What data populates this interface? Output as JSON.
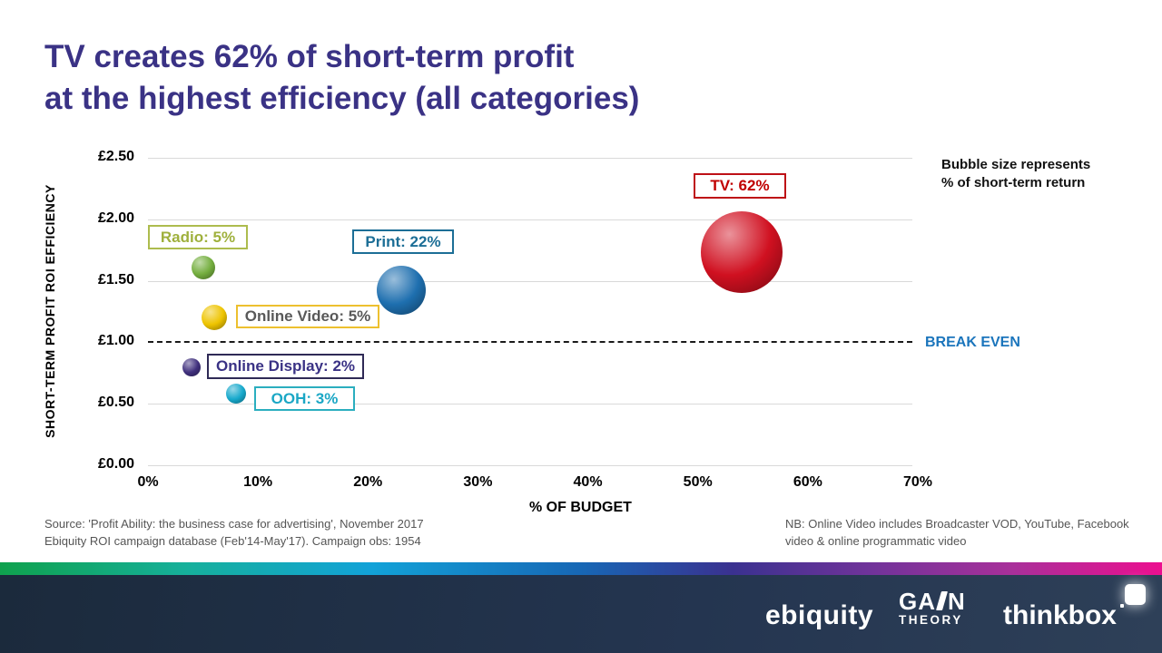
{
  "title": {
    "line1": "TV creates 62% of short-term profit",
    "line2": "at the highest efficiency (all categories)",
    "color": "#3a3285"
  },
  "chart_data": {
    "type": "scatter",
    "title": "",
    "xlabel": "% OF BUDGET",
    "ylabel": "SHORT-TERM PROFIT ROI EFFICIENCY",
    "xlim": [
      0,
      70
    ],
    "ylim": [
      0,
      2.5
    ],
    "x_ticks": [
      "0%",
      "10%",
      "20%",
      "30%",
      "40%",
      "50%",
      "60%",
      "70%"
    ],
    "y_ticks": [
      "£0.00",
      "£0.50",
      "£1.00",
      "£1.50",
      "£2.00",
      "£2.50"
    ],
    "grid": "horizontal-only",
    "break_even": {
      "value": 1.0,
      "label": "BREAK EVEN",
      "color": "#1b75bc"
    },
    "size_note": {
      "line1": "Bubble size represents",
      "line2": "% of short-term return"
    },
    "points": [
      {
        "id": "tv",
        "category": "TV",
        "label": "TV: 62%",
        "budget_pct": 54,
        "roi_efficiency": 1.73,
        "short_term_return_pct": 62,
        "bubble_color": "#d01020",
        "label_color": "#c00000",
        "border_color": "#be1016"
      },
      {
        "id": "print",
        "category": "Print",
        "label": "Print: 22%",
        "budget_pct": 23,
        "roi_efficiency": 1.42,
        "short_term_return_pct": 22,
        "bubble_color": "#1e6faf",
        "label_color": "#1c6e96",
        "border_color": "#1c6e96"
      },
      {
        "id": "radio",
        "category": "Radio",
        "label": "Radio: 5%",
        "budget_pct": 5,
        "roi_efficiency": 1.61,
        "short_term_return_pct": 5,
        "bubble_color": "#74ae3e",
        "label_color": "#9fb03c",
        "border_color": "#adbc4e"
      },
      {
        "id": "online_video",
        "category": "Online Video",
        "label": "Online Video: 5%",
        "budget_pct": 6,
        "roi_efficiency": 1.2,
        "short_term_return_pct": 5,
        "bubble_color": "#eec400",
        "label_color": "#595959",
        "border_color": "#edc02f"
      },
      {
        "id": "online_display",
        "category": "Online Display",
        "label": "Online Display: 2%",
        "budget_pct": 4,
        "roi_efficiency": 0.8,
        "short_term_return_pct": 2,
        "bubble_color": "#40307d",
        "label_color": "#3a3285",
        "border_color": "#2f2a56"
      },
      {
        "id": "ooh",
        "category": "OOH",
        "label": "OOH: 3%",
        "budget_pct": 8,
        "roi_efficiency": 0.58,
        "short_term_return_pct": 3,
        "bubble_color": "#17a9cc",
        "label_color": "#1ba7c5",
        "border_color": "#2baebf"
      }
    ]
  },
  "source_note": {
    "line1": "Source: 'Profit Ability: the business case for advertising',  November  2017",
    "line2": "Ebiquity ROI campaign database (Feb'14-May'17).  Campaign  obs: 1954"
  },
  "nb_note": {
    "line1": "NB: Online Video includes Broadcaster VOD, YouTube,  Facebook",
    "line2": "video  & online  programmatic  video"
  },
  "footer": {
    "logos": {
      "ebiquity": {
        "text": "ebiquity"
      },
      "gain_theory": {
        "text_ga": "GA",
        "text_n": "N",
        "text_bottom": "THEORY"
      },
      "thinkbox": {
        "text": "thinkbox"
      }
    }
  }
}
